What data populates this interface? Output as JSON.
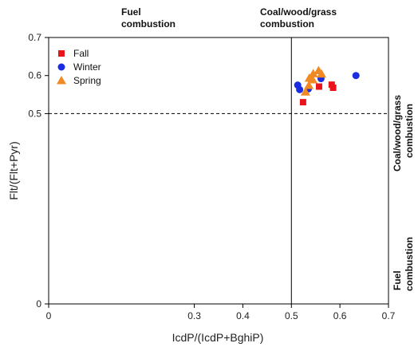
{
  "chart_data": {
    "type": "scatter",
    "xlabel": "IcdP/(IcdP+BghiP)",
    "ylabel": "Flt/(Flt+Pyr)",
    "xlim": [
      0,
      0.7
    ],
    "ylim": [
      0,
      0.7
    ],
    "xticks": [
      0,
      0.3,
      0.4,
      0.5,
      0.6,
      0.7
    ],
    "xtick_labels": [
      "0",
      "0.3",
      "0.4",
      "0.5",
      "0.6",
      "0.7"
    ],
    "yticks": [
      0,
      0.5,
      0.6,
      0.7
    ],
    "ytick_labels": [
      "0",
      "0.5",
      "0.6",
      "0.7"
    ],
    "reference_lines": [
      {
        "orientation": "vertical",
        "value": 0.5,
        "style": "solid"
      },
      {
        "orientation": "horizontal",
        "value": 0.5,
        "style": "dashed"
      }
    ],
    "region_labels": {
      "top_left": [
        "Fuel",
        "combustion"
      ],
      "top_right": [
        "Coal/wood/grass",
        "combustion"
      ],
      "right_upper": [
        "Coal/wood/grass",
        "combustion"
      ],
      "right_lower": [
        "Fuel",
        "combustion"
      ]
    },
    "legend_position": "top-left",
    "series": [
      {
        "name": "Fall",
        "marker": "square",
        "color": "#e8161c",
        "points": [
          {
            "x": 0.524,
            "y": 0.53
          },
          {
            "x": 0.557,
            "y": 0.571
          },
          {
            "x": 0.583,
            "y": 0.576
          },
          {
            "x": 0.586,
            "y": 0.568
          }
        ]
      },
      {
        "name": "Winter",
        "marker": "circle",
        "color": "#1a2de0",
        "points": [
          {
            "x": 0.513,
            "y": 0.575
          },
          {
            "x": 0.517,
            "y": 0.563
          },
          {
            "x": 0.535,
            "y": 0.565
          },
          {
            "x": 0.561,
            "y": 0.592
          },
          {
            "x": 0.633,
            "y": 0.6
          }
        ]
      },
      {
        "name": "Spring",
        "marker": "triangle",
        "color": "#f08a24",
        "points": [
          {
            "x": 0.529,
            "y": 0.557
          },
          {
            "x": 0.536,
            "y": 0.574
          },
          {
            "x": 0.537,
            "y": 0.593
          },
          {
            "x": 0.544,
            "y": 0.589
          },
          {
            "x": 0.545,
            "y": 0.605
          },
          {
            "x": 0.556,
            "y": 0.613
          },
          {
            "x": 0.562,
            "y": 0.604
          }
        ]
      }
    ]
  }
}
